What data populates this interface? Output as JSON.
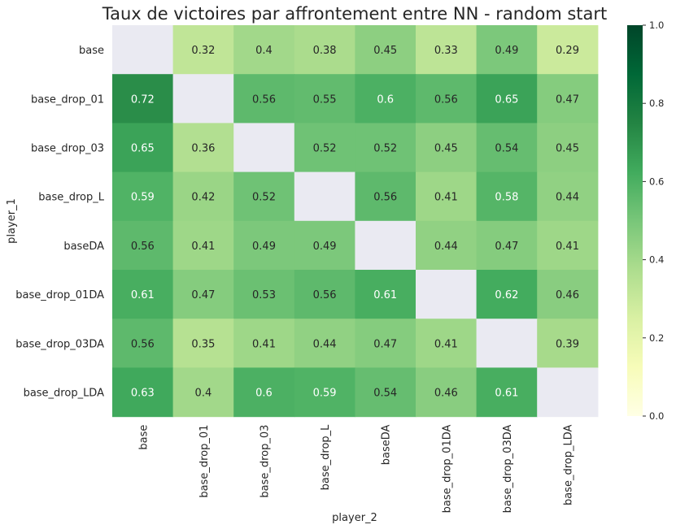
{
  "chart_data": {
    "type": "heatmap",
    "title": "Taux de victoires par affrontement entre NN - random start",
    "xlabel": "player_2",
    "ylabel": "player_1",
    "row_labels": [
      "base",
      "base_drop_01",
      "base_drop_03",
      "base_drop_L",
      "baseDA",
      "base_drop_01DA",
      "base_drop_03DA",
      "base_drop_LDA"
    ],
    "col_labels": [
      "base",
      "base_drop_01",
      "base_drop_03",
      "base_drop_L",
      "baseDA",
      "base_drop_01DA",
      "base_drop_03DA",
      "base_drop_LDA"
    ],
    "values": [
      [
        null,
        0.32,
        0.4,
        0.38,
        0.45,
        0.33,
        0.49,
        0.29
      ],
      [
        0.72,
        null,
        0.56,
        0.55,
        0.6,
        0.56,
        0.65,
        0.47
      ],
      [
        0.65,
        0.36,
        null,
        0.52,
        0.52,
        0.45,
        0.54,
        0.45
      ],
      [
        0.59,
        0.42,
        0.52,
        null,
        0.56,
        0.41,
        0.58,
        0.44
      ],
      [
        0.56,
        0.41,
        0.49,
        0.49,
        null,
        0.44,
        0.47,
        0.41
      ],
      [
        0.61,
        0.47,
        0.53,
        0.56,
        0.61,
        null,
        0.62,
        0.46
      ],
      [
        0.56,
        0.35,
        0.41,
        0.44,
        0.47,
        0.41,
        null,
        0.39
      ],
      [
        0.63,
        0.4,
        0.6,
        0.59,
        0.54,
        0.46,
        0.61,
        null
      ]
    ],
    "colorbar": {
      "vmin": 0.0,
      "vmax": 1.0,
      "ticks": [
        "0.0",
        "0.2",
        "0.4",
        "0.6",
        "0.8",
        "1.0"
      ],
      "colormap": "YlGn"
    },
    "missing_color": "#eaeaf2"
  }
}
